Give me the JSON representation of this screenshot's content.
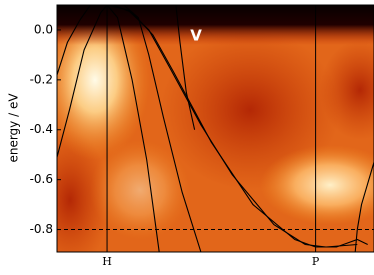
{
  "chart_data": {
    "type": "line",
    "y_label": "energy / eV",
    "annotation": "V",
    "xlim": [
      -0.24,
      1.28
    ],
    "ylim": [
      -0.89,
      0.1
    ],
    "xticks": [
      {
        "value": 0,
        "label": "H"
      },
      {
        "value": 1,
        "label": "P"
      }
    ],
    "yticks": [
      {
        "value": 0,
        "label": "0.0"
      },
      {
        "value": -0.2,
        "label": "-0.2"
      },
      {
        "value": -0.4,
        "label": "-0.4"
      },
      {
        "value": -0.6,
        "label": "-0.6"
      },
      {
        "value": -0.8,
        "label": "-0.8"
      }
    ],
    "reference_line": -0.8,
    "color": "#000000",
    "series": [
      {
        "x": [
          -0.24,
          -0.18,
          -0.11,
          -0.03,
          0.0
        ],
        "values": [
          -0.51,
          -0.32,
          -0.08,
          0.07,
          0.1
        ]
      },
      {
        "x": [
          -0.24,
          -0.19,
          -0.13,
          -0.08
        ],
        "values": [
          -0.18,
          -0.05,
          0.04,
          0.1
        ]
      },
      {
        "x": [
          0.0,
          0.05,
          0.12,
          0.19,
          0.25
        ],
        "values": [
          0.1,
          0.05,
          -0.2,
          -0.52,
          -0.89
        ]
      },
      {
        "x": [
          0.08,
          0.15,
          0.2,
          0.27,
          0.36,
          0.45
        ],
        "values": [
          0.1,
          0.05,
          -0.1,
          -0.35,
          -0.65,
          -0.89
        ]
      },
      {
        "x": [
          0.0,
          0.1,
          0.2,
          0.3,
          0.45,
          0.6,
          0.8,
          0.95,
          1.05,
          1.2
        ],
        "values": [
          0.1,
          0.08,
          0.0,
          -0.15,
          -0.38,
          -0.58,
          -0.78,
          -0.86,
          -0.87,
          -0.86
        ]
      },
      {
        "x": [
          0.03,
          0.12,
          0.22,
          0.32,
          0.5,
          0.7,
          0.9,
          1.0,
          1.1,
          1.2,
          1.25
        ],
        "values": [
          0.1,
          0.07,
          -0.02,
          -0.17,
          -0.45,
          -0.7,
          -0.84,
          -0.87,
          -0.87,
          -0.84,
          -0.86
        ]
      },
      {
        "x": [
          0.33,
          0.35,
          0.38,
          0.42
        ],
        "values": [
          0.1,
          -0.05,
          -0.25,
          -0.4
        ]
      },
      {
        "x": [
          1.19,
          1.2,
          1.22,
          1.28
        ],
        "values": [
          -0.89,
          -0.8,
          -0.7,
          -0.53
        ]
      }
    ]
  }
}
